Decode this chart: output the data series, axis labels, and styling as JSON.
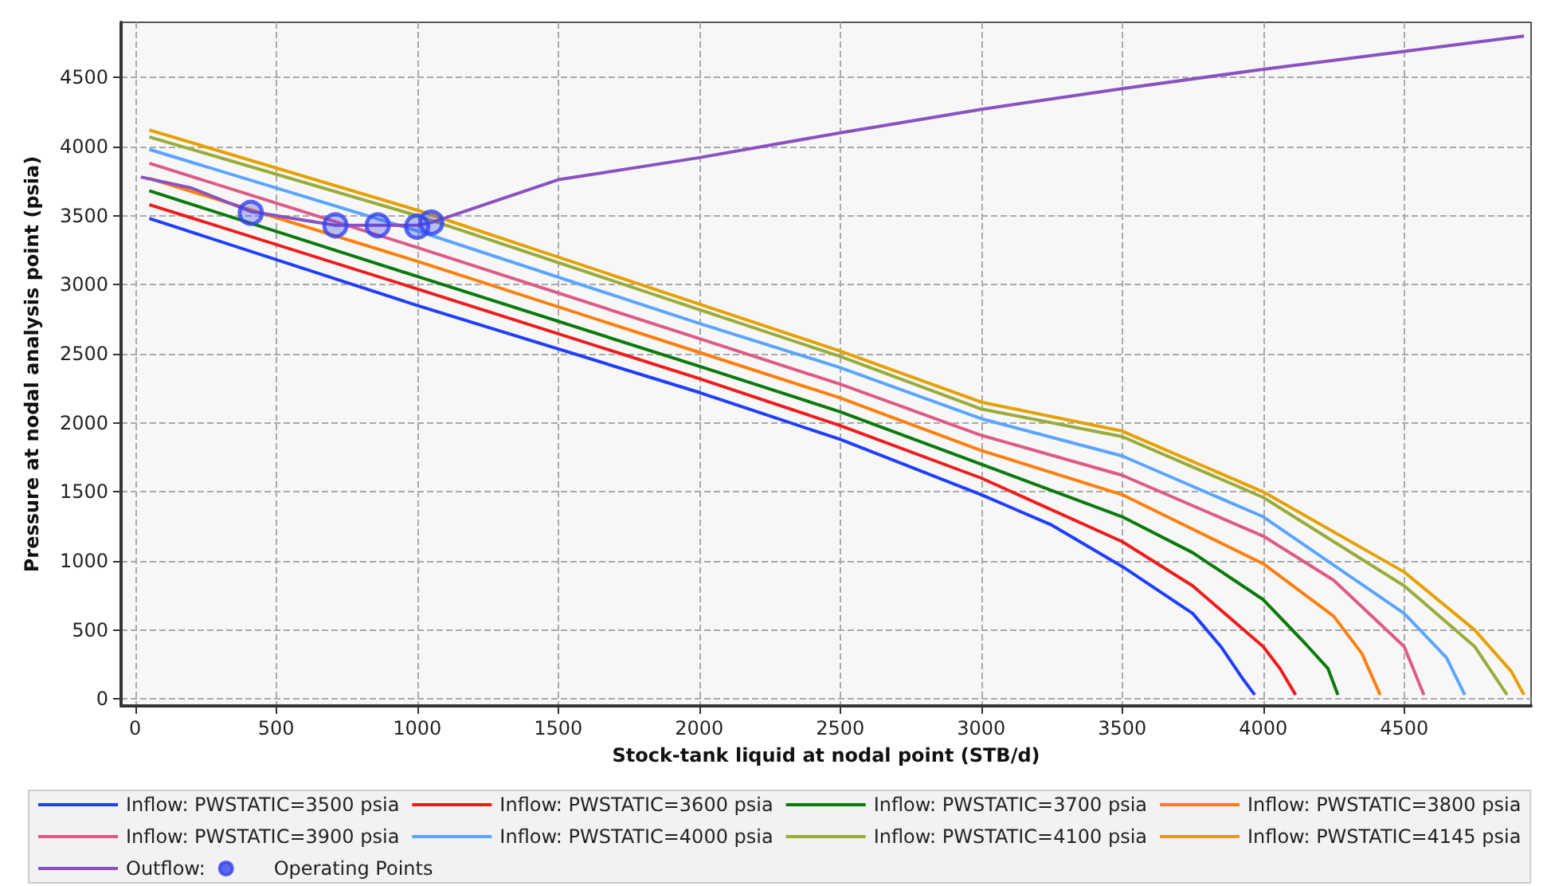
{
  "chart_data": {
    "type": "line",
    "xlabel": "Stock-tank liquid at nodal point (STB/d)",
    "ylabel": "Pressure at nodal analysis point (psia)",
    "xlim": [
      -50,
      4950
    ],
    "xticks": [
      0,
      500,
      1000,
      1500,
      2000,
      2500,
      3000,
      3500,
      4000,
      4500
    ],
    "ylim": [
      -50,
      4900
    ],
    "yticks": [
      0,
      500,
      1000,
      1500,
      2000,
      2500,
      3000,
      3500,
      4000,
      4500
    ],
    "grid": true,
    "legend": "bottom",
    "line_style": "solid",
    "marker": "none",
    "series": [
      {
        "name": "Inflow: PWSTATIC=3500 psia",
        "color": "#1f3fff",
        "x": [
          50,
          1000,
          2000,
          2500,
          3000,
          3250,
          3500,
          3750,
          3850,
          3930,
          3970
        ],
        "values": [
          3480,
          2850,
          2220,
          1880,
          1480,
          1260,
          960,
          620,
          380,
          140,
          30
        ]
      },
      {
        "name": "Inflow: PWSTATIC=3600 psia",
        "color": "#ee1c1c",
        "x": [
          50,
          1000,
          2000,
          2500,
          3000,
          3500,
          3750,
          4000,
          4060,
          4115
        ],
        "values": [
          3580,
          2970,
          2320,
          1980,
          1600,
          1140,
          820,
          380,
          220,
          30
        ]
      },
      {
        "name": "Inflow: PWSTATIC=3700 psia",
        "color": "#0a7a0a",
        "x": [
          50,
          1000,
          2000,
          2500,
          3000,
          3500,
          3750,
          4000,
          4150,
          4230,
          4265
        ],
        "values": [
          3680,
          3060,
          2410,
          2080,
          1700,
          1320,
          1060,
          720,
          400,
          220,
          30
        ]
      },
      {
        "name": "Inflow: PWSTATIC=3800 psia",
        "color": "#ff7f0e",
        "x": [
          50,
          1000,
          2000,
          2500,
          3000,
          3500,
          4000,
          4250,
          4350,
          4415
        ],
        "values": [
          3770,
          3170,
          2510,
          2180,
          1800,
          1480,
          980,
          600,
          330,
          30
        ]
      },
      {
        "name": "Inflow: PWSTATIC=3900 psia",
        "color": "#de5a8a",
        "x": [
          50,
          1000,
          2000,
          2500,
          3000,
          3500,
          4000,
          4250,
          4500,
          4570
        ],
        "values": [
          3880,
          3270,
          2610,
          2280,
          1910,
          1620,
          1180,
          860,
          380,
          30
        ]
      },
      {
        "name": "Inflow: PWSTATIC=4000 psia",
        "color": "#5aa5ff",
        "x": [
          50,
          1000,
          2000,
          2500,
          3000,
          3500,
          4000,
          4500,
          4650,
          4715
        ],
        "values": [
          3980,
          3390,
          2720,
          2400,
          2030,
          1760,
          1320,
          620,
          300,
          30
        ]
      },
      {
        "name": "Inflow: PWSTATIC=4100 psia",
        "color": "#9aab3a",
        "x": [
          50,
          1000,
          2000,
          2500,
          3000,
          3500,
          4000,
          4500,
          4750,
          4865
        ],
        "values": [
          4070,
          3500,
          2820,
          2480,
          2100,
          1900,
          1460,
          820,
          380,
          30
        ]
      },
      {
        "name": "Inflow: PWSTATIC=4145 psia",
        "color": "#e6a000",
        "x": [
          50,
          1000,
          2000,
          2500,
          3000,
          3500,
          4000,
          4500,
          4750,
          4880,
          4925
        ],
        "values": [
          4120,
          3540,
          2860,
          2520,
          2150,
          1940,
          1500,
          920,
          500,
          200,
          30
        ]
      },
      {
        "name": "Outflow:",
        "color": "#8a52c0",
        "x": [
          20,
          200,
          410,
          710,
          860,
          1000,
          1050,
          1500,
          2000,
          2500,
          3000,
          3500,
          4000,
          4500,
          4925
        ],
        "values": [
          3780,
          3700,
          3530,
          3430,
          3430,
          3430,
          3450,
          3760,
          3920,
          4100,
          4270,
          4420,
          4560,
          4690,
          4800
        ]
      },
      {
        "name": "Operating Points",
        "type": "scatter",
        "marker": "circle",
        "color": "#3344ee",
        "x": [
          410,
          710,
          860,
          1000,
          1050
        ],
        "values": [
          3520,
          3430,
          3430,
          3420,
          3450
        ]
      }
    ]
  }
}
